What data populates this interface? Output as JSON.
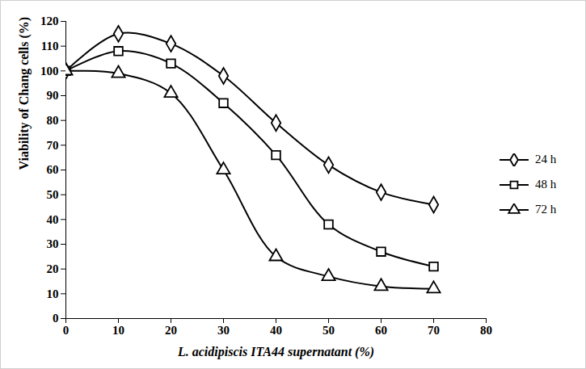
{
  "chart_data": {
    "type": "line",
    "x_label": "L. acidipiscis ITA44 supernatant (%)",
    "y_label": "Viability of Chang cells (%)",
    "x": [
      0,
      10,
      20,
      30,
      40,
      50,
      60,
      70
    ],
    "series": [
      {
        "name": "24 h",
        "color": "#000000",
        "marker": "diamond",
        "values": [
          100,
          115,
          111,
          98,
          79,
          62,
          51,
          46
        ]
      },
      {
        "name": "48 h",
        "color": "#000000",
        "marker": "square",
        "values": [
          100,
          108,
          103,
          87,
          66,
          38,
          27,
          21
        ]
      },
      {
        "name": "72 h",
        "color": "#000000",
        "marker": "triangle",
        "values": [
          100,
          99,
          91,
          60,
          25,
          17,
          13,
          12
        ]
      }
    ],
    "xlim": [
      0,
      80
    ],
    "xticks": [
      0,
      10,
      20,
      30,
      40,
      50,
      60,
      70,
      80
    ],
    "ylim": [
      0,
      120
    ],
    "yticks": [
      0,
      10,
      20,
      30,
      40,
      50,
      60,
      70,
      80,
      90,
      100,
      110,
      120
    ],
    "grid": false,
    "legend": "right"
  }
}
